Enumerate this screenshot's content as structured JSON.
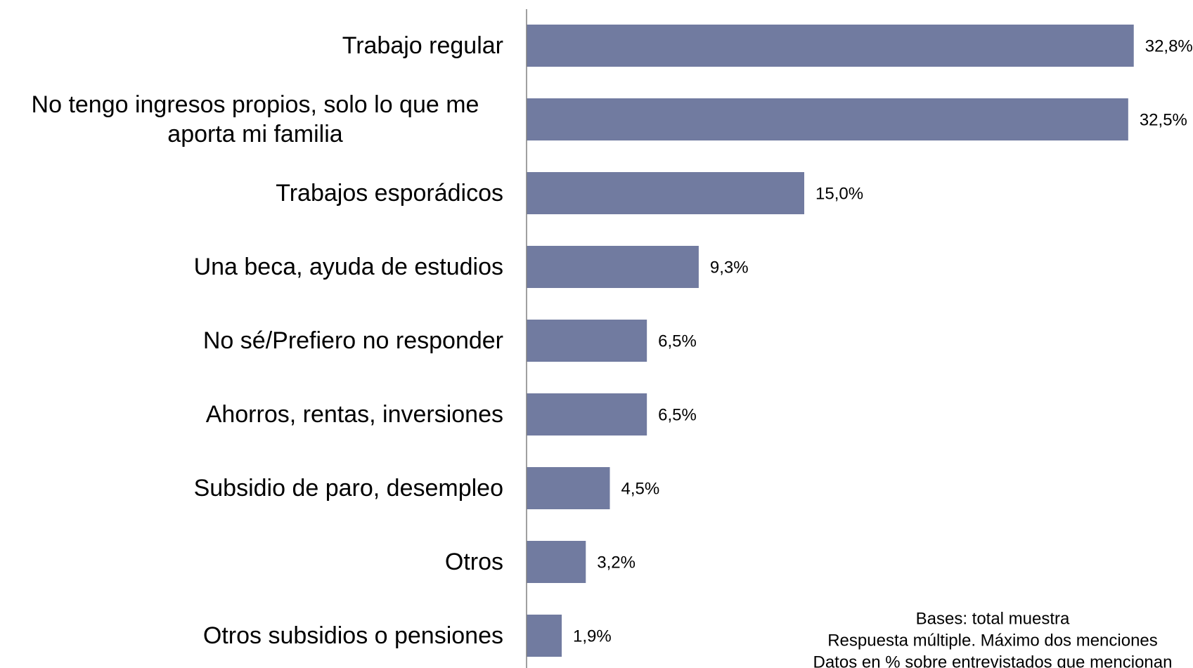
{
  "chart_data": {
    "type": "bar",
    "orientation": "horizontal",
    "categories": [
      "Trabajo regular",
      "No tengo ingresos propios, solo lo que me aporta mi familia",
      "Trabajos esporádicos",
      "Una beca, ayuda de estudios",
      "No sé/Prefiero no responder",
      "Ahorros, rentas, inversiones",
      "Subsidio de paro, desempleo",
      "Otros",
      "Otros subsidios o pensiones"
    ],
    "values": [
      32.8,
      32.5,
      15.0,
      9.3,
      6.5,
      6.5,
      4.5,
      3.2,
      1.9
    ],
    "value_labels": [
      "32,8%",
      "32,5%",
      "15,0%",
      "9,3%",
      "6,5%",
      "6,5%",
      "4,5%",
      "3,2%",
      "1,9%"
    ],
    "color": "#717ba0",
    "xlim": [
      0,
      36
    ],
    "notes": [
      "Bases: total muestra",
      "Respuesta múltiple. Máximo dos menciones",
      "Datos en % sobre entrevistados que mencionan"
    ]
  }
}
